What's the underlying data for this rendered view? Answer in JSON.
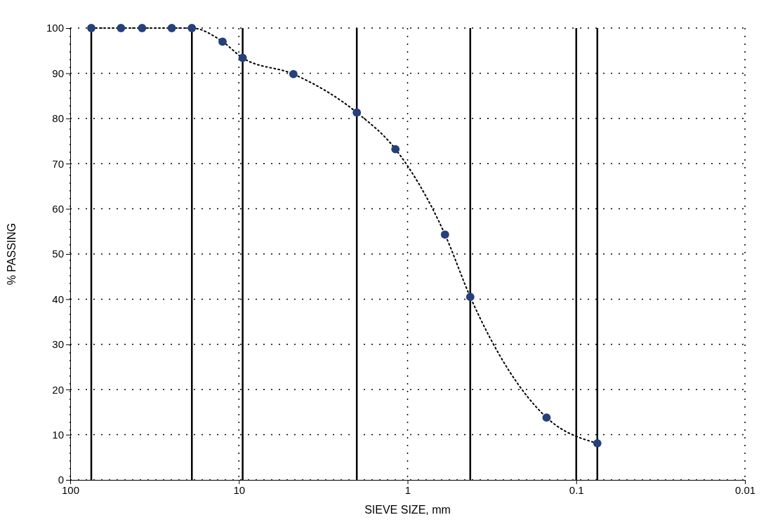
{
  "chart_data": {
    "type": "scatter",
    "xlabel": "SIEVE SIZE, mm",
    "ylabel": "% PASSING",
    "log": "x",
    "grid": true,
    "xlim": [
      100,
      0.01
    ],
    "xticks": [
      100,
      10,
      1,
      0.1,
      0.01
    ],
    "ylim": [
      0,
      100
    ],
    "yticks": [
      0,
      10,
      20,
      30,
      40,
      50,
      60,
      70,
      80,
      90,
      100
    ],
    "series": [
      {
        "type": "line",
        "color": "#000000",
        "line_style": "dotted",
        "marker": "none",
        "x": [
          75,
          50,
          37.5,
          25,
          19,
          12.5,
          9.5,
          4.75,
          2,
          1.18,
          0.6,
          0.425,
          0.15,
          0.075
        ],
        "values": [
          100,
          100,
          100,
          100,
          100,
          97,
          93.4,
          89.8,
          81.3,
          73.2,
          54.3,
          40.5,
          13.8,
          8.1
        ]
      },
      {
        "color": "#26407a",
        "marker": "circle",
        "x": [
          75,
          50,
          37.5,
          25,
          19,
          12.5,
          9.5,
          4.75,
          2,
          1.18,
          0.6,
          0.425,
          0.15,
          0.075
        ],
        "values": [
          100,
          100,
          100,
          100,
          100,
          97,
          93.4,
          89.8,
          81.3,
          73.2,
          54.3,
          40.5,
          13.8,
          8.1
        ]
      }
    ],
    "ref_lines": [
      {
        "axis": "x",
        "value": 75,
        "color": "#000000"
      },
      {
        "axis": "x",
        "value": 19,
        "color": "#000000"
      },
      {
        "axis": "x",
        "value": 9.5,
        "color": "#000000"
      },
      {
        "axis": "x",
        "value": 2,
        "color": "#000000"
      },
      {
        "axis": "x",
        "value": 0.425,
        "color": "#000000"
      },
      {
        "axis": "x",
        "value": 0.1,
        "color": "#000000"
      },
      {
        "axis": "x",
        "value": 0.075,
        "color": "#000000"
      }
    ]
  }
}
